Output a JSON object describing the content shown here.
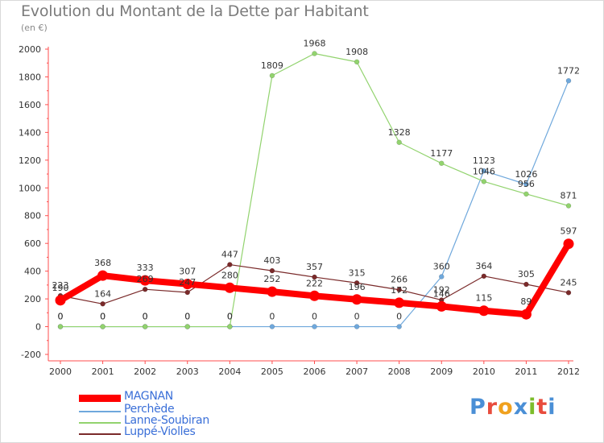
{
  "title": "Evolution du Montant de la Dette par Habitant",
  "subtitle": "(en €)",
  "logo": {
    "letters": [
      "P",
      "r",
      "o",
      "x",
      "i",
      "t",
      "i"
    ],
    "colors": [
      "#4a8fd6",
      "#e84c3d",
      "#f0a11e",
      "#4a8fd6",
      "#7cbd2b",
      "#e84c3d",
      "#4a8fd6"
    ]
  },
  "chart_data": {
    "type": "line",
    "x": [
      "2000",
      "2001",
      "2002",
      "2003",
      "2004",
      "2005",
      "2006",
      "2007",
      "2008",
      "2009",
      "2010",
      "2011",
      "2012"
    ],
    "ylim": [
      -200,
      2000
    ],
    "yticks": [
      "-200",
      "0",
      "200",
      "400",
      "600",
      "800",
      "1000",
      "1200",
      "1400",
      "1600",
      "1800",
      "2000"
    ],
    "grid": false,
    "legend_position": "bottom-left",
    "series": [
      {
        "name": "MAGNAN",
        "color": "#ff0000",
        "values": [
          190,
          368,
          333,
          307,
          280,
          252,
          222,
          196,
          172,
          146,
          115,
          89,
          597
        ],
        "labels": [
          "190",
          "368",
          "333",
          "307",
          "280",
          "252",
          "222",
          "196",
          "172",
          "146",
          "115",
          "89",
          "597"
        ]
      },
      {
        "name": "Perchède",
        "color": "#6fa8dc",
        "values": [
          0,
          0,
          0,
          0,
          0,
          0,
          0,
          0,
          0,
          360,
          1123,
          1026,
          1772
        ],
        "labels": [
          "0",
          "0",
          "0",
          "0",
          "0",
          "0",
          "0",
          "0",
          "0",
          "360",
          "1123",
          "1026",
          "1772"
        ]
      },
      {
        "name": "Lanne-Soubiran",
        "color": "#92d36e",
        "values": [
          0,
          0,
          0,
          0,
          0,
          1809,
          1968,
          1908,
          1328,
          1177,
          1046,
          956,
          871
        ],
        "labels": [
          "0",
          "0",
          "0",
          "0",
          "0",
          "1809",
          "1968",
          "1908",
          "1328",
          "1177",
          "1046",
          "956",
          "871"
        ]
      },
      {
        "name": "Luppé-Violles",
        "color": "#7a2a2a",
        "values": [
          223,
          164,
          269,
          247,
          447,
          403,
          357,
          315,
          266,
          192,
          364,
          305,
          245
        ],
        "labels": [
          "223",
          "164",
          "269",
          "247",
          "447",
          "403",
          "357",
          "315",
          "266",
          "192",
          "364",
          "305",
          "245"
        ]
      }
    ]
  }
}
